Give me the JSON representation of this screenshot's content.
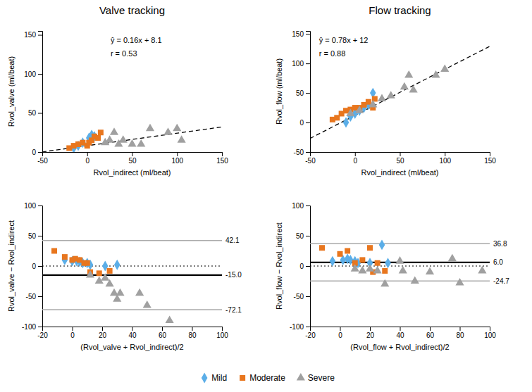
{
  "chart_data": [
    {
      "type": "scatter",
      "title": "Valve tracking",
      "x_label": "Rvol_indirect (ml/beat)",
      "y_label": "Rvol_valve (ml/beat)",
      "annotations": [
        "ŷ = 0.16x + 8.1",
        "r = 0.53"
      ],
      "legend": "bottom",
      "series": [
        {
          "name": "Mild",
          "color": "#5baee8",
          "marker": "diamond",
          "x": [
            -15,
            -10,
            -5,
            2,
            5,
            8
          ],
          "values": [
            5,
            8,
            12,
            18,
            22,
            20
          ]
        },
        {
          "name": "Moderate",
          "color": "#e8761e",
          "marker": "square",
          "x": [
            -20,
            -15,
            -10,
            -5,
            0,
            2,
            5,
            8,
            12,
            15
          ],
          "values": [
            5,
            8,
            10,
            12,
            8,
            12,
            15,
            20,
            18,
            25
          ]
        },
        {
          "name": "Severe",
          "color": "#a0a0a0",
          "marker": "triangle",
          "x": [
            20,
            25,
            30,
            35,
            40,
            50,
            60,
            70,
            90,
            100,
            105
          ],
          "values": [
            12,
            15,
            25,
            10,
            15,
            10,
            10,
            30,
            25,
            30,
            15
          ]
        },
        {
          "type": "line",
          "line_style": "dashed",
          "color": "#000000",
          "x": [
            -50,
            150
          ],
          "values": [
            0.1,
            32.1
          ]
        }
      ],
      "xlim": [
        -50,
        150
      ],
      "ylim": [
        0,
        155
      ],
      "xticks": [
        -50,
        0,
        50,
        100,
        150
      ],
      "yticks": [
        0,
        50,
        100,
        150
      ]
    },
    {
      "type": "scatter",
      "title": "Flow tracking",
      "x_label": "Rvol_indirect (ml/beat)",
      "y_label": "Rvol_flow (ml/beat)",
      "annotations": [
        "ŷ = 0.78x + 12",
        "r = 0.88"
      ],
      "series": [
        {
          "name": "Mild",
          "color": "#5baee8",
          "marker": "diamond",
          "x": [
            -10,
            -5,
            0,
            5,
            10,
            15,
            20
          ],
          "values": [
            0,
            10,
            15,
            20,
            25,
            30,
            50
          ]
        },
        {
          "name": "Moderate",
          "color": "#e8761e",
          "marker": "square",
          "x": [
            -25,
            -20,
            -15,
            -10,
            -5,
            0,
            5,
            10,
            15,
            20,
            22
          ],
          "values": [
            5,
            8,
            15,
            20,
            22,
            25,
            25,
            30,
            35,
            25,
            40
          ]
        },
        {
          "name": "Severe",
          "color": "#a0a0a0",
          "marker": "triangle",
          "x": [
            -5,
            5,
            20,
            30,
            40,
            55,
            60,
            65,
            90,
            100
          ],
          "values": [
            15,
            20,
            30,
            40,
            45,
            60,
            80,
            55,
            80,
            90
          ]
        },
        {
          "type": "line",
          "line_style": "dashed",
          "color": "#000000",
          "x": [
            -50,
            150
          ],
          "values": [
            -27,
            129
          ]
        }
      ],
      "xlim": [
        -50,
        150
      ],
      "ylim": [
        -50,
        155
      ],
      "xticks": [
        -50,
        0,
        50,
        100,
        150
      ],
      "yticks": [
        -50,
        0,
        50,
        100,
        150
      ]
    },
    {
      "type": "scatter",
      "x_label": "(Rvol_valve + Rvol_indirect)/2",
      "y_label": "Rvol_valve − Rvol_indirect",
      "series": [
        {
          "name": "Mild",
          "color": "#5baee8",
          "marker": "diamond",
          "x": [
            -5,
            0,
            3,
            5,
            7,
            10,
            12,
            22,
            30
          ],
          "values": [
            10,
            8,
            8,
            7,
            5,
            5,
            2,
            0,
            2
          ]
        },
        {
          "name": "Moderate",
          "color": "#e8761e",
          "marker": "square",
          "x": [
            -12,
            -5,
            0,
            2,
            5,
            8,
            10,
            12,
            18,
            25
          ],
          "values": [
            25,
            15,
            10,
            12,
            10,
            5,
            5,
            -10,
            -12,
            -8
          ]
        },
        {
          "name": "Severe",
          "color": "#a0a0a0",
          "marker": "triangle",
          "x": [
            12,
            18,
            22,
            25,
            28,
            30,
            32,
            45,
            50,
            65
          ],
          "values": [
            -15,
            -25,
            -20,
            -30,
            -45,
            -55,
            -45,
            -45,
            -65,
            -90
          ]
        }
      ],
      "mean": {
        "value": -15.0,
        "label": "-15.0",
        "color": "#000000"
      },
      "limits": [
        {
          "value": 42.1,
          "label": "42.1",
          "color": "#aaaaaa"
        },
        {
          "value": -72.1,
          "label": "-72.1",
          "color": "#aaaaaa"
        }
      ],
      "zero_line": {
        "value": 0,
        "color": "#000000",
        "line_style": "dotted"
      },
      "xlim": [
        -20,
        100
      ],
      "ylim": [
        -100,
        100
      ],
      "xticks": [
        -20,
        0,
        20,
        40,
        60,
        80,
        100
      ],
      "yticks": [
        -100,
        -50,
        0,
        50,
        100
      ]
    },
    {
      "type": "scatter",
      "x_label": "(Rvol_flow + Rvol_indirect)/2",
      "y_label": "Rvol_flow − Rvol_indirect",
      "series": [
        {
          "name": "Mild",
          "color": "#5baee8",
          "marker": "diamond",
          "x": [
            -5,
            2,
            5,
            7,
            10,
            12,
            20,
            28,
            32
          ],
          "values": [
            8,
            10,
            12,
            10,
            8,
            5,
            5,
            35,
            5
          ]
        },
        {
          "name": "Moderate",
          "color": "#e8761e",
          "marker": "square",
          "x": [
            -12,
            0,
            5,
            10,
            15,
            20,
            22,
            25,
            30
          ],
          "values": [
            30,
            20,
            25,
            5,
            10,
            30,
            -10,
            5,
            -8
          ]
        },
        {
          "name": "Severe",
          "color": "#a0a0a0",
          "marker": "triangle",
          "x": [
            10,
            15,
            20,
            25,
            30,
            40,
            42,
            50,
            60,
            75,
            80,
            95
          ],
          "values": [
            -5,
            -8,
            -5,
            -8,
            -30,
            8,
            -8,
            -25,
            -10,
            12,
            -28,
            -8
          ]
        }
      ],
      "mean": {
        "value": 6.0,
        "label": "6.0",
        "color": "#000000"
      },
      "limits": [
        {
          "value": 36.8,
          "label": "36.8",
          "color": "#aaaaaa"
        },
        {
          "value": -24.7,
          "label": "-24.7",
          "color": "#aaaaaa"
        }
      ],
      "zero_line": {
        "value": 0,
        "color": "#000000",
        "line_style": "dotted"
      },
      "xlim": [
        -20,
        100
      ],
      "ylim": [
        -100,
        100
      ],
      "xticks": [
        -20,
        0,
        20,
        40,
        60,
        80,
        100
      ],
      "yticks": [
        -100,
        -50,
        0,
        50,
        100
      ]
    }
  ]
}
